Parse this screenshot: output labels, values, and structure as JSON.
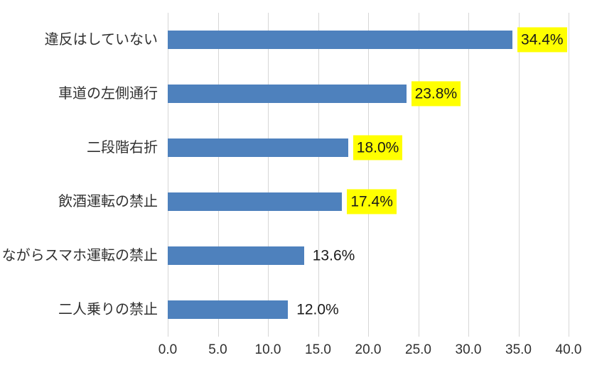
{
  "chart_data": {
    "type": "bar",
    "orientation": "horizontal",
    "title": "",
    "xlabel": "",
    "ylabel": "",
    "categories": [
      "違反はしていない",
      "車道の左側通行",
      "二段階右折",
      "飲酒運転の禁止",
      "ながらスマホ運転の禁止",
      "二人乗りの禁止"
    ],
    "values": [
      34.4,
      23.8,
      18.0,
      17.4,
      13.6,
      12.0
    ],
    "value_labels": [
      "34.4%",
      "23.8%",
      "18.0%",
      "17.4%",
      "13.6%",
      "12.0%"
    ],
    "highlighted": [
      true,
      true,
      true,
      true,
      false,
      false
    ],
    "xlim": [
      0.0,
      40.0
    ],
    "x_ticks": [
      0.0,
      5.0,
      10.0,
      15.0,
      20.0,
      25.0,
      30.0,
      35.0,
      40.0
    ],
    "x_tick_labels": [
      "0.0",
      "5.0",
      "10.0",
      "15.0",
      "20.0",
      "25.0",
      "30.0",
      "35.0",
      "40.0"
    ],
    "grid": "vertical",
    "legend": "none",
    "colors": {
      "bar": "#4e81bd",
      "highlight_background": "#ffff00",
      "gridline": "#d6d6d6",
      "text": "#303030",
      "background": "#ffffff"
    }
  }
}
